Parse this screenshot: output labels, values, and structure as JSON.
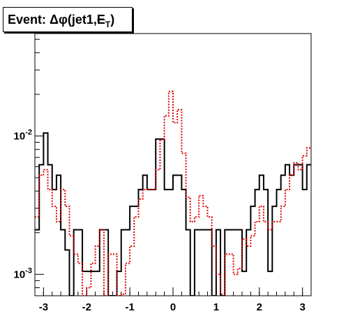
{
  "title": {
    "prefix": "Event: ",
    "delta": "Δ",
    "phi": "φ",
    "paren_open": "(",
    "jet": "jet1,",
    "met_symbol": "E",
    "met_sub": "T",
    "paren_close": ")"
  },
  "chart_data": {
    "type": "histogram",
    "x_axis": {
      "range": [
        -3.2,
        3.2
      ],
      "ticks": [
        -3,
        -2,
        -1,
        0,
        1,
        2,
        3
      ],
      "tick_labels": [
        "-3",
        "-2",
        "-1",
        "0",
        "1",
        "2",
        "3"
      ],
      "scale": "linear"
    },
    "y_axis": {
      "range": [
        0.0007,
        0.055
      ],
      "scale": "log",
      "tick_values": [
        0.001,
        0.01
      ],
      "tick_labels": [
        "10-3",
        "10-2"
      ]
    },
    "grid": false,
    "bin_edges": [
      -3.2,
      -3.1,
      -3.0,
      -2.9,
      -2.8,
      -2.7,
      -2.6,
      -2.5,
      -2.4,
      -2.3,
      -2.2,
      -2.1,
      -2.0,
      -1.9,
      -1.8,
      -1.7,
      -1.6,
      -1.5,
      -1.4,
      -1.3,
      -1.2,
      -1.1,
      -1.0,
      -0.9,
      -0.8,
      -0.7,
      -0.6,
      -0.5,
      -0.4,
      -0.3,
      -0.2,
      -0.1,
      0.0,
      0.1,
      0.2,
      0.3,
      0.4,
      0.5,
      0.6,
      0.7,
      0.8,
      0.9,
      1.0,
      1.1,
      1.2,
      1.3,
      1.4,
      1.5,
      1.6,
      1.7,
      1.8,
      1.9,
      2.0,
      2.1,
      2.2,
      2.3,
      2.4,
      2.5,
      2.6,
      2.7,
      2.8,
      2.9,
      3.0,
      3.1,
      3.2
    ],
    "series": [
      {
        "color": "#000000",
        "style": "solid",
        "values": [
          0.0021,
          0.0062,
          0.0105,
          0.0062,
          0.0041,
          0.0052,
          0.0021,
          0.0015,
          0.00065,
          0.0021,
          0.0021,
          0.00105,
          0.00105,
          0.00105,
          0.00105,
          0.0021,
          0.0021,
          0.00065,
          0.00065,
          0.00105,
          0.0021,
          0.0021,
          0.0031,
          0.0031,
          0.0041,
          0.0052,
          0.0041,
          0.0041,
          0.0095,
          0.0095,
          0.0041,
          0.0041,
          0.0052,
          0.0052,
          0.0041,
          0.0021,
          0.00065,
          0.0021,
          0.0021,
          0.0021,
          0.0021,
          0.00065,
          0.0021,
          0.00065,
          0.0021,
          0.0021,
          0.0021,
          0.0021,
          0.00105,
          0.0021,
          0.0031,
          0.0041,
          0.0052,
          0.0041,
          0.00105,
          0.0031,
          0.0041,
          0.0052,
          0.0062,
          0.0052,
          0.0062,
          0.0062,
          0.0041,
          0.0062
        ]
      },
      {
        "color": "#dd0000",
        "style": "dotted",
        "values": [
          0.0026,
          0.0052,
          0.0057,
          0.0041,
          0.0031,
          0.0024,
          0.0041,
          0.0031,
          0.0019,
          0.0014,
          0.0012,
          0.00065,
          0.0008,
          0.0012,
          0.0016,
          0.0021,
          0.00065,
          0.0014,
          0.0014,
          0.00065,
          0.00072,
          0.0012,
          0.0016,
          0.0026,
          0.0035,
          0.0041,
          0.0041,
          0.0041,
          0.0057,
          0.0094,
          0.014,
          0.021,
          0.0125,
          0.0155,
          0.0075,
          0.0036,
          0.0024,
          0.0026,
          0.0037,
          0.0031,
          0.0026,
          0.0016,
          0.001,
          0.00072,
          0.0014,
          0.0014,
          0.001,
          0.0011,
          0.0018,
          0.0016,
          0.0019,
          0.0024,
          0.0031,
          0.0024,
          0.0021,
          0.0024,
          0.0024,
          0.0031,
          0.0041,
          0.0052,
          0.0064,
          0.0057,
          0.0072,
          0.0082
        ]
      }
    ]
  }
}
